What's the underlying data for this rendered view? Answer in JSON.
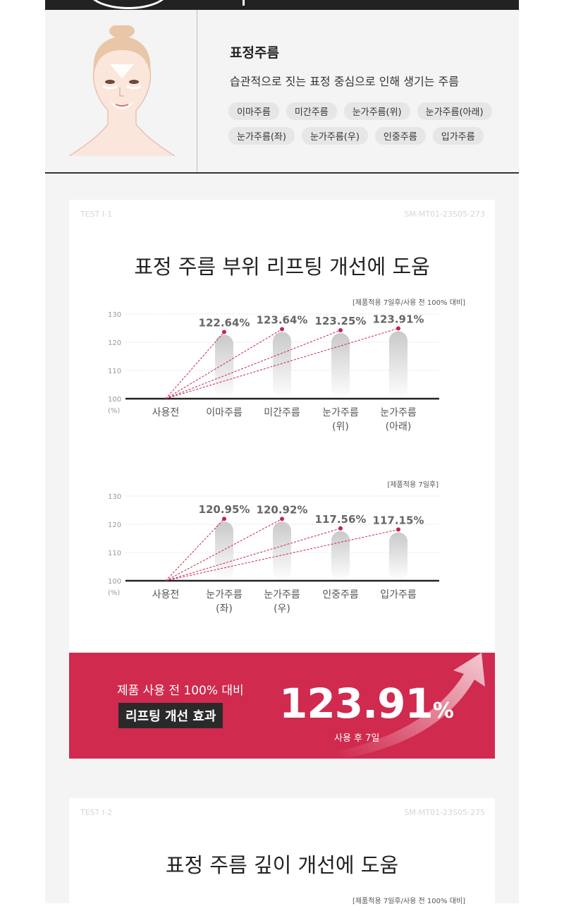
{
  "wrinkle": {
    "title": "표정주름",
    "description": "습관적으로 짓는 표정 중심으로 인해 생기는 주름",
    "tags_row1": [
      "이마주름",
      "미간주름",
      "눈가주름(위)",
      "눈가주름(아래)"
    ],
    "tags_row2": [
      "눈가주름(좌)",
      "눈가주름(우)",
      "인중주름",
      "입가주름"
    ]
  },
  "test1": {
    "id": "TEST I-1",
    "sm": "SM-MT01-23S05-273",
    "title": "표정 주름 부위 리프팅 개선에 도움",
    "note1": "[제품적용 7일후/사용 전 100% 대비]",
    "note2": "[제품적용 7일후]"
  },
  "chart_data": [
    {
      "type": "bar",
      "categories": [
        "사용전",
        "이마주름",
        "미간주름",
        "눈가주름(위)",
        "눈가주름(아래)"
      ],
      "values": [
        100,
        122.64,
        123.64,
        123.25,
        123.91
      ],
      "labels": [
        "",
        "122.64%",
        "123.64%",
        "123.25%",
        "123.91%"
      ],
      "ylim": [
        100,
        130
      ],
      "yticks": [
        "100",
        "110",
        "120",
        "130"
      ],
      "yunit": "(%)",
      "cat_lines": [
        [
          "사용전"
        ],
        [
          "이마주름"
        ],
        [
          "미간주름"
        ],
        [
          "눈가주름",
          "(위)"
        ],
        [
          "눈가주름",
          "(아래)"
        ]
      ]
    },
    {
      "type": "bar",
      "categories": [
        "사용전",
        "눈가주름(좌)",
        "눈가주름(우)",
        "인중주름",
        "입가주름"
      ],
      "values": [
        100,
        120.95,
        120.92,
        117.56,
        117.15
      ],
      "labels": [
        "",
        "120.95%",
        "120.92%",
        "117.56%",
        "117.15%"
      ],
      "ylim": [
        100,
        130
      ],
      "yticks": [
        "100",
        "110",
        "120",
        "130"
      ],
      "yunit": "(%)",
      "cat_lines": [
        [
          "사용전"
        ],
        [
          "눈가주름",
          "(좌)"
        ],
        [
          "눈가주름",
          "(우)"
        ],
        [
          "인중주름"
        ],
        [
          "입가주름"
        ]
      ]
    }
  ],
  "banner": {
    "line1": "제품 사용 전 100% 대비",
    "line2": "리프팅 개선 효과",
    "value": "123.91",
    "unit": "%",
    "sub": "사용 후 7일",
    "color": "#d02a4e"
  },
  "test2": {
    "id": "TEST I-2",
    "sm": "SM-MT01-23S05-275",
    "title": "표정 주름 깊이 개선에 도움",
    "note": "[제품적용 7일후/사용 전 100% 대비]"
  },
  "colors": {
    "accent": "#d02a4e",
    "dot": "#c8234a"
  }
}
